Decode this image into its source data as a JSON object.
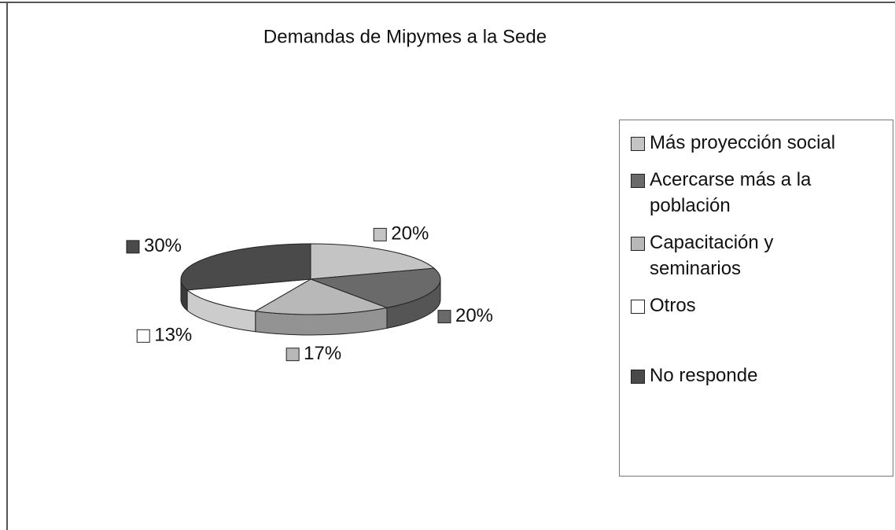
{
  "chart_data": {
    "type": "pie",
    "title": "Demandas de Mipymes a la Sede",
    "categories": [
      "Más proyección social",
      "Acercarse más a la población",
      "Capacitación y seminarios",
      "Otros",
      "No responde"
    ],
    "values": [
      20,
      20,
      17,
      13,
      30
    ],
    "value_labels": [
      "20%",
      "20%",
      "17%",
      "13%",
      "30%"
    ],
    "colors": [
      "#c4c4c4",
      "#6a6a6a",
      "#b8b8b8",
      "#ffffff",
      "#4a4a4a"
    ],
    "legend": "right"
  }
}
